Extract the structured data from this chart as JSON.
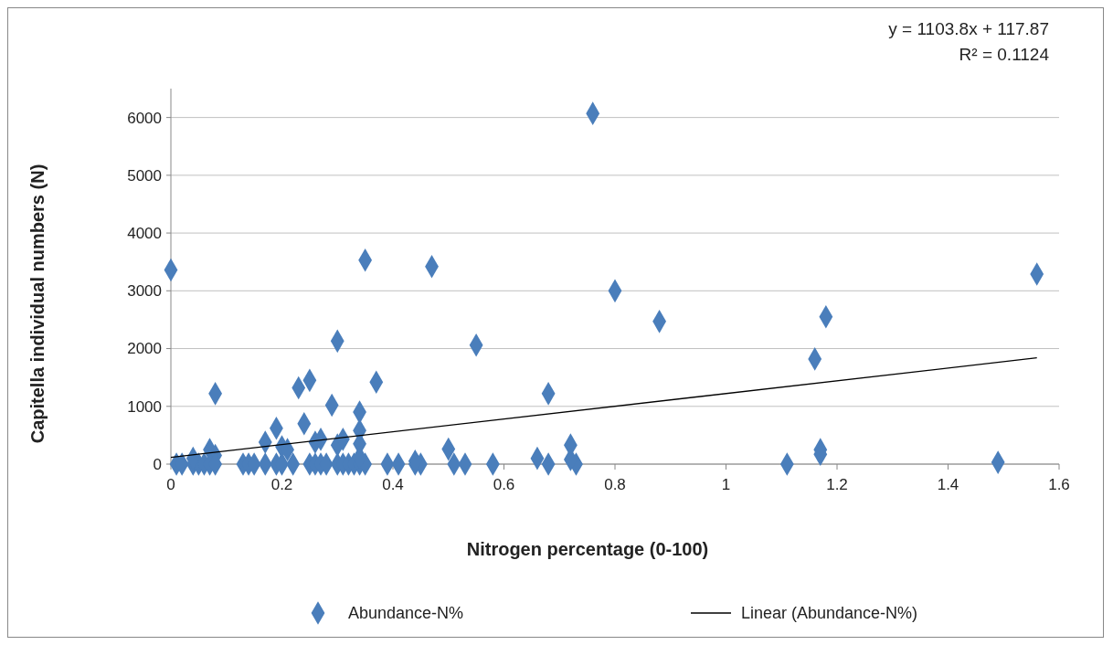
{
  "chart_data": {
    "type": "scatter",
    "xlabel": "Nitrogen percentage (0-100)",
    "ylabel": "Capitella individual  numbers (N)",
    "xlim": [
      0,
      1.6
    ],
    "ylim": [
      0,
      6500
    ],
    "xticks": [
      0,
      0.2,
      0.4,
      0.6,
      0.8,
      1,
      1.2,
      1.4,
      1.6
    ],
    "yticks": [
      0,
      1000,
      2000,
      3000,
      4000,
      5000,
      6000
    ],
    "grid": "y",
    "legend": "bottom",
    "marker": "diamond",
    "annotations": [
      "y = 1103.8x + 117.87",
      "R² = 0.1124"
    ],
    "series": [
      {
        "name": "Abundance-N%",
        "color": "#4a7ebb",
        "x": [
          0,
          0.08,
          0.07,
          0.08,
          0.01,
          0.02,
          0.04,
          0.05,
          0.06,
          0.07,
          0.08,
          0.13,
          0.14,
          0.15,
          0.17,
          0.19,
          0.2,
          0.22,
          0.25,
          0.26,
          0.27,
          0.28,
          0.3,
          0.31,
          0.32,
          0.33,
          0.34,
          0.35,
          0.39,
          0.41,
          0.44,
          0.45,
          0.51,
          0.53,
          0.58,
          0.68,
          0.73,
          1.11,
          0.04,
          0.17,
          0.19,
          0.2,
          0.21,
          0.23,
          0.24,
          0.25,
          0.26,
          0.27,
          0.29,
          0.3,
          0.3,
          0.31,
          0.34,
          0.34,
          0.34,
          0.35,
          0.37,
          0.34,
          0.44,
          0.47,
          0.5,
          0.55,
          0.66,
          0.68,
          0.72,
          0.72,
          0.76,
          0.8,
          0.88,
          1.16,
          1.17,
          1.17,
          1.18,
          1.49,
          1.56
        ],
        "values": [
          3360,
          1220,
          250,
          150,
          0,
          0,
          0,
          0,
          0,
          0,
          0,
          0,
          0,
          0,
          0,
          0,
          0,
          0,
          0,
          0,
          0,
          0,
          0,
          0,
          0,
          0,
          0,
          0,
          0,
          0,
          0,
          0,
          0,
          0,
          0,
          0,
          0,
          0,
          100,
          380,
          620,
          300,
          250,
          1320,
          700,
          1450,
          380,
          430,
          1020,
          2130,
          330,
          430,
          900,
          580,
          350,
          3530,
          1420,
          120,
          50,
          3420,
          260,
          2060,
          100,
          1220,
          330,
          80,
          6070,
          3000,
          2470,
          1820,
          250,
          170,
          2550,
          30,
          3290
        ]
      },
      {
        "name": "Linear (Abundance-N%)",
        "type": "line",
        "color": "#000000",
        "marker": "none",
        "x": [
          0,
          1.56
        ],
        "values": [
          117.87,
          1839.8
        ]
      }
    ]
  }
}
